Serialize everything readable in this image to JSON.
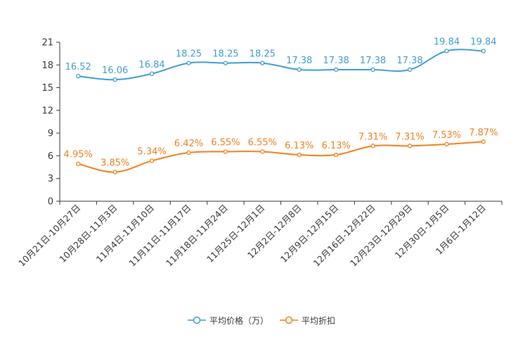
{
  "chart_data": {
    "type": "line",
    "title": "",
    "xlabel": "",
    "ylabel": "",
    "ylim": [
      0,
      21
    ],
    "yticks": [
      0,
      3,
      6,
      9,
      12,
      15,
      18,
      21
    ],
    "grid": false,
    "legend_position": "bottom",
    "categories": [
      "10月21日-10月27日",
      "10月28日-11月3日",
      "11月4日-11月10日",
      "11月11日-11月17日",
      "11月18日-11月24日",
      "11月25日-12月1日",
      "12月2日-12月8日",
      "12月9日-12月15日",
      "12月16日-12月22日",
      "12月23日-12月29日",
      "12月30日-1月5日",
      "1月6日-1月12日"
    ],
    "series": [
      {
        "name": "平均价格（万）",
        "color": "#3d9ad1",
        "values": [
          16.52,
          16.06,
          16.84,
          18.25,
          18.25,
          18.25,
          17.38,
          17.38,
          17.38,
          17.38,
          19.84,
          19.84
        ],
        "labels": [
          "16.52",
          "16.06",
          "16.84",
          "18.25",
          "18.25",
          "18.25",
          "17.38",
          "17.38",
          "17.38",
          "17.38",
          "19.84",
          "19.84"
        ]
      },
      {
        "name": "平均折扣",
        "color": "#f07d1a",
        "values": [
          4.95,
          3.85,
          5.34,
          6.42,
          6.55,
          6.55,
          6.13,
          6.13,
          7.31,
          7.31,
          7.53,
          7.87
        ],
        "labels": [
          "4.95%",
          "3.85%",
          "5.34%",
          "6.42%",
          "6.55%",
          "6.55%",
          "6.13%",
          "6.13%",
          "7.31%",
          "7.31%",
          "7.53%",
          "7.87%"
        ]
      }
    ]
  }
}
